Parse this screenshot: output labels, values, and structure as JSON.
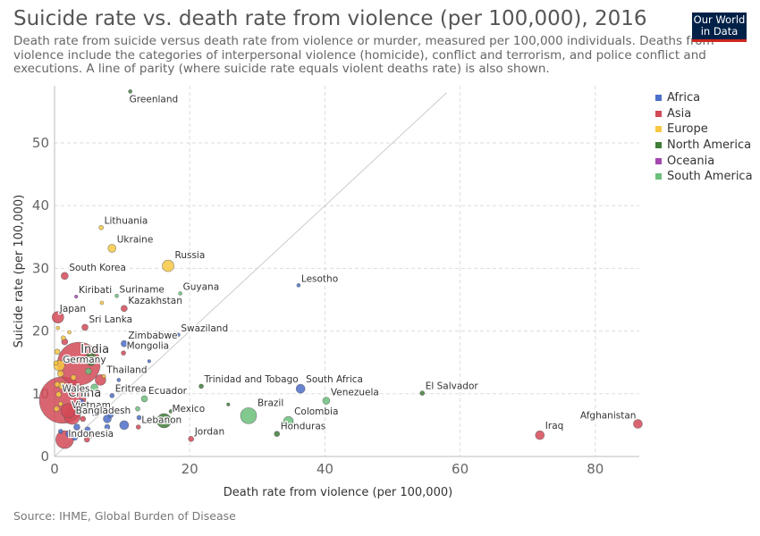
{
  "header": {
    "title": "Suicide rate vs. death rate from violence (per 100,000), 2016",
    "subtitle": "Death rate from suicide versus death rate from violence or murder, measured per 100,000 individuals. Deaths from violence include the categories of interpersonal violence (homicide), conflict and terrorism, and police conflict and executions. A line of parity (where suicide rate equals violent deaths rate) is also shown.",
    "logo_line1": "Our World",
    "logo_line2": "in Data"
  },
  "footer": {
    "source": "Source: IHME, Global Burden of Disease"
  },
  "colors": {
    "Africa": "#4c6fc9",
    "Asia": "#d24a57",
    "Europe": "#f7c843",
    "North America": "#3f7d3a",
    "Oceania": "#a348b0",
    "South America": "#6cc07d"
  },
  "chart_data": {
    "type": "scatter",
    "title": "Suicide rate vs. death rate from violence (per 100,000), 2016",
    "xlabel": "Death rate from violence (per 100,000)",
    "ylabel": "Suicide rate (per 100,000)",
    "xlim": [
      0,
      86
    ],
    "ylim": [
      0,
      58
    ],
    "xticks": [
      0,
      20,
      40,
      60,
      80
    ],
    "yticks": [
      0,
      10,
      20,
      30,
      40,
      50
    ],
    "grid": true,
    "legend_position": "right",
    "legend": [
      "Africa",
      "Asia",
      "Europe",
      "North America",
      "Oceania",
      "South America"
    ],
    "parity_line": true,
    "points": [
      {
        "label": "Greenland",
        "x": 11.2,
        "y": 58.2,
        "region": "North America",
        "size": 2
      },
      {
        "label": "Lithuania",
        "x": 6.9,
        "y": 36.5,
        "region": "Europe",
        "size": 2.5
      },
      {
        "label": "Ukraine",
        "x": 8.5,
        "y": 33.2,
        "region": "Europe",
        "size": 4.5
      },
      {
        "label": "Russia",
        "x": 16.8,
        "y": 30.4,
        "region": "Europe",
        "size": 6.5
      },
      {
        "label": "South Korea",
        "x": 1.5,
        "y": 28.8,
        "region": "Asia",
        "size": 4
      },
      {
        "label": "Lesotho",
        "x": 36.1,
        "y": 27.3,
        "region": "Africa",
        "size": 2
      },
      {
        "label": "Kiribati",
        "x": 3.2,
        "y": 25.5,
        "region": "Oceania",
        "size": 1.8
      },
      {
        "label": "Suriname",
        "x": 9.2,
        "y": 25.6,
        "region": "South America",
        "size": 2
      },
      {
        "label": "Guyana",
        "x": 18.6,
        "y": 26.0,
        "region": "South America",
        "size": 2
      },
      {
        "label": "Kazakhstan",
        "x": 10.3,
        "y": 23.6,
        "region": "Asia",
        "size": 3.5
      },
      {
        "label": "Japan",
        "x": 0.5,
        "y": 22.2,
        "region": "Asia",
        "size": 6.5
      },
      {
        "label": "Sri Lanka",
        "x": 4.5,
        "y": 20.6,
        "region": "Asia",
        "size": 3.5
      },
      {
        "label": "Swaziland",
        "x": 18.3,
        "y": 19.4,
        "region": "Africa",
        "size": 2
      },
      {
        "label": "Zimbabwe",
        "x": 10.3,
        "y": 18.0,
        "region": "Africa",
        "size": 3.5
      },
      {
        "label": "Mongolia",
        "x": 10.2,
        "y": 16.5,
        "region": "Asia",
        "size": 2.5
      },
      {
        "label": "India",
        "x": 3.6,
        "y": 14.8,
        "region": "Asia",
        "size": 24
      },
      {
        "label": "Germany",
        "x": 0.7,
        "y": 14.5,
        "region": "Europe",
        "size": 6
      },
      {
        "label": "Thailand",
        "x": 6.8,
        "y": 12.2,
        "region": "Asia",
        "size": 6
      },
      {
        "label": "China",
        "x": 1.2,
        "y": 9.0,
        "region": "Asia",
        "size": 26
      },
      {
        "label": "Wales",
        "x": 0.6,
        "y": 9.9,
        "region": "Europe",
        "size": 3
      },
      {
        "label": "Eritrea",
        "x": 8.5,
        "y": 9.7,
        "region": "Africa",
        "size": 2.5
      },
      {
        "label": "Ecuador",
        "x": 13.3,
        "y": 9.2,
        "region": "South America",
        "size": 3.5
      },
      {
        "label": "Vietnam",
        "x": 2.0,
        "y": 7.3,
        "region": "Asia",
        "size": 8
      },
      {
        "label": "Bangladesh",
        "x": 2.6,
        "y": 6.4,
        "region": "Asia",
        "size": 9
      },
      {
        "label": "Mexico",
        "x": 16.2,
        "y": 5.7,
        "region": "North America",
        "size": 8
      },
      {
        "label": "Lebanon",
        "x": 12.4,
        "y": 4.7,
        "region": "Asia",
        "size": 2.5
      },
      {
        "label": "Indonesia",
        "x": 1.5,
        "y": 2.7,
        "region": "Asia",
        "size": 10
      },
      {
        "label": "Jordan",
        "x": 20.2,
        "y": 2.8,
        "region": "Asia",
        "size": 3
      },
      {
        "label": "Trinidad and Tobago",
        "x": 21.7,
        "y": 11.2,
        "region": "North America",
        "size": 2.5
      },
      {
        "label": "South Africa",
        "x": 36.4,
        "y": 10.8,
        "region": "Africa",
        "size": 5
      },
      {
        "label": "Venezuela",
        "x": 40.2,
        "y": 8.9,
        "region": "South America",
        "size": 4
      },
      {
        "label": "Brazil",
        "x": 28.7,
        "y": 6.5,
        "region": "South America",
        "size": 9
      },
      {
        "label": "Colombia",
        "x": 34.6,
        "y": 5.6,
        "region": "South America",
        "size": 5.5
      },
      {
        "label": "Honduras",
        "x": 32.9,
        "y": 3.6,
        "region": "North America",
        "size": 3
      },
      {
        "label": "El Salvador",
        "x": 54.4,
        "y": 10.1,
        "region": "North America",
        "size": 2.5
      },
      {
        "label": "Afghanistan",
        "x": 86.3,
        "y": 5.2,
        "region": "Asia",
        "size": 5
      },
      {
        "label": "Iraq",
        "x": 71.8,
        "y": 3.4,
        "region": "Asia",
        "size": 5
      },
      {
        "label": "",
        "x": 0.4,
        "y": 16.7,
        "region": "Europe",
        "size": 3
      },
      {
        "label": "",
        "x": 1.3,
        "y": 18.9,
        "region": "Europe",
        "size": 2.5
      },
      {
        "label": "",
        "x": 0.9,
        "y": 13.2,
        "region": "Europe",
        "size": 3.5
      },
      {
        "label": "",
        "x": 0.4,
        "y": 11.5,
        "region": "Europe",
        "size": 3
      },
      {
        "label": "",
        "x": 1.1,
        "y": 11.3,
        "region": "Europe",
        "size": 4
      },
      {
        "label": "",
        "x": 0.3,
        "y": 7.6,
        "region": "Europe",
        "size": 3
      },
      {
        "label": "",
        "x": 0.9,
        "y": 8.4,
        "region": "Europe",
        "size": 2.5
      },
      {
        "label": "",
        "x": 1.5,
        "y": 18.3,
        "region": "Asia",
        "size": 3.5
      },
      {
        "label": "",
        "x": 0.5,
        "y": 20.5,
        "region": "Europe",
        "size": 2
      },
      {
        "label": "",
        "x": 7.0,
        "y": 24.5,
        "region": "Europe",
        "size": 2
      },
      {
        "label": "",
        "x": 2.2,
        "y": 19.8,
        "region": "Europe",
        "size": 2
      },
      {
        "label": "",
        "x": 5.4,
        "y": 15.5,
        "region": "North America",
        "size": 7
      },
      {
        "label": "",
        "x": 5.0,
        "y": 13.6,
        "region": "South America",
        "size": 3.5
      },
      {
        "label": "",
        "x": 5.9,
        "y": 11.0,
        "region": "South America",
        "size": 4
      },
      {
        "label": "",
        "x": 2.3,
        "y": 10.6,
        "region": "Europe",
        "size": 3
      },
      {
        "label": "",
        "x": 3.9,
        "y": 8.6,
        "region": "Africa",
        "size": 4
      },
      {
        "label": "",
        "x": 6.0,
        "y": 7.0,
        "region": "Africa",
        "size": 4
      },
      {
        "label": "",
        "x": 7.8,
        "y": 6.0,
        "region": "Africa",
        "size": 4.5
      },
      {
        "label": "",
        "x": 8.3,
        "y": 6.6,
        "region": "Africa",
        "size": 3
      },
      {
        "label": "",
        "x": 10.3,
        "y": 5.0,
        "region": "Africa",
        "size": 5
      },
      {
        "label": "",
        "x": 7.8,
        "y": 4.7,
        "region": "Africa",
        "size": 3
      },
      {
        "label": "",
        "x": 4.9,
        "y": 4.3,
        "region": "Africa",
        "size": 3
      },
      {
        "label": "",
        "x": 3.3,
        "y": 4.7,
        "region": "Africa",
        "size": 3.5
      },
      {
        "label": "",
        "x": 2.2,
        "y": 3.6,
        "region": "Africa",
        "size": 4
      },
      {
        "label": "",
        "x": 3.0,
        "y": 3.0,
        "region": "Africa",
        "size": 3
      },
      {
        "label": "",
        "x": 0.9,
        "y": 4.0,
        "region": "Africa",
        "size": 2.5
      },
      {
        "label": "",
        "x": 4.8,
        "y": 2.7,
        "region": "Asia",
        "size": 3
      },
      {
        "label": "",
        "x": 5.3,
        "y": 3.3,
        "region": "Asia",
        "size": 2.5
      },
      {
        "label": "",
        "x": 4.2,
        "y": 6.0,
        "region": "Asia",
        "size": 3
      },
      {
        "label": "",
        "x": 9.5,
        "y": 12.2,
        "region": "Africa",
        "size": 2
      },
      {
        "label": "",
        "x": 12.5,
        "y": 6.2,
        "region": "Africa",
        "size": 2.5
      },
      {
        "label": "",
        "x": 12.3,
        "y": 7.6,
        "region": "South America",
        "size": 2.5
      },
      {
        "label": "",
        "x": 14.0,
        "y": 15.2,
        "region": "Africa",
        "size": 1.8
      },
      {
        "label": "",
        "x": 25.7,
        "y": 8.3,
        "region": "North America",
        "size": 1.8
      },
      {
        "label": "",
        "x": 17.2,
        "y": 7.2,
        "region": "North America",
        "size": 2
      },
      {
        "label": "",
        "x": 7.3,
        "y": 12.8,
        "region": "Europe",
        "size": 2
      },
      {
        "label": "",
        "x": 6.4,
        "y": 8.1,
        "region": "Asia",
        "size": 2.5
      },
      {
        "label": "",
        "x": 0.2,
        "y": 14.9,
        "region": "Europe",
        "size": 2.5
      },
      {
        "label": "",
        "x": 2.8,
        "y": 12.6,
        "region": "Europe",
        "size": 3
      }
    ]
  }
}
